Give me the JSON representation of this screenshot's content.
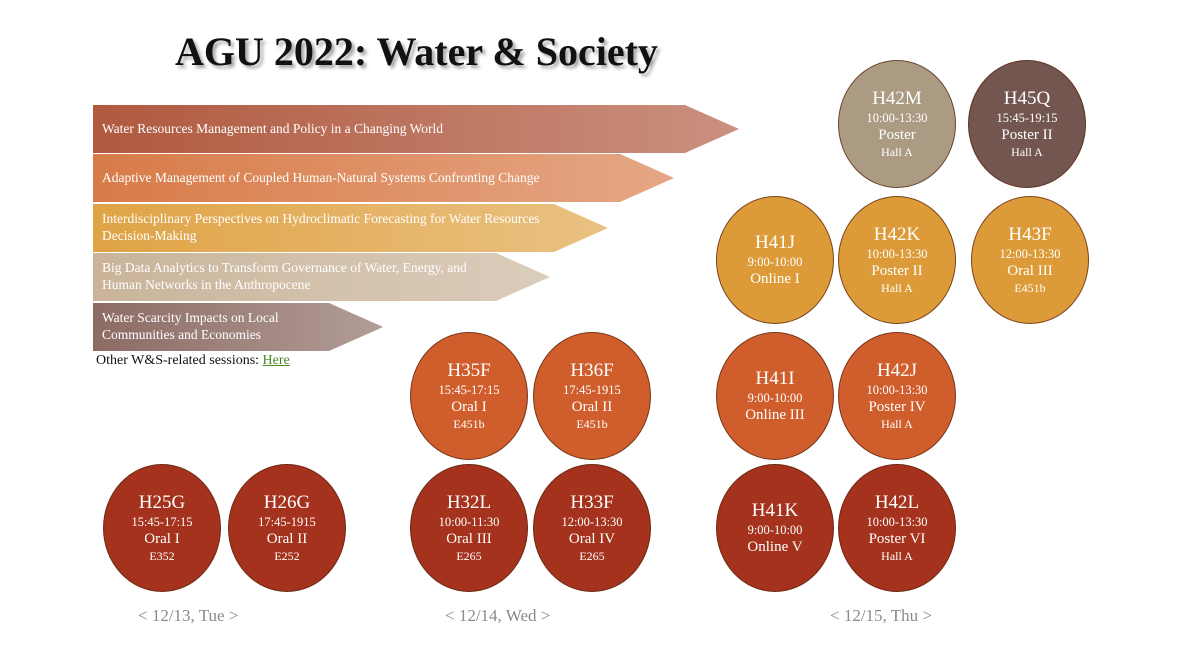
{
  "title": "AGU 2022: Water & Society",
  "themes": [
    {
      "label": "Water Resources Management and Policy in a Changing World",
      "color": "#b0593f"
    },
    {
      "label": "Adaptive Management of Coupled Human-Natural Systems Confronting Change",
      "color": "#d87b48"
    },
    {
      "label": "Interdisciplinary Perspectives on Hydroclimatic Forecasting for Water Resources Decision-Making",
      "color": "#dfa345"
    },
    {
      "label": "Big Data Analytics to Transform Governance of Water, Energy, and Human Networks in the Anthropocene",
      "color": "#c9b49a"
    },
    {
      "label": "Water Scarcity Impacts on Local Communities and Economies",
      "color": "#8c6b64"
    }
  ],
  "other_sessions": {
    "prefix": "Other W&S-related sessions: ",
    "link": "Here"
  },
  "sessions": [
    {
      "code": "H42M",
      "time": "10:00-13:30",
      "kind": "Poster",
      "room": "Hall A",
      "color": "#ab9b83"
    },
    {
      "code": "H45Q",
      "time": "15:45-19:15",
      "kind": "Poster II",
      "room": "Hall A",
      "color": "#735650"
    },
    {
      "code": "H41J",
      "time": "9:00-10:00",
      "kind": "Online I",
      "room": "",
      "color": "#dc9b38"
    },
    {
      "code": "H42K",
      "time": "10:00-13:30",
      "kind": "Poster II",
      "room": "Hall A",
      "color": "#dc9b38"
    },
    {
      "code": "H43F",
      "time": "12:00-13:30",
      "kind": "Oral III",
      "room": "E451b",
      "color": "#dc9b38"
    },
    {
      "code": "H35F",
      "time": "15:45-17:15",
      "kind": "Oral I",
      "room": "E451b",
      "color": "#cf5e2c"
    },
    {
      "code": "H36F",
      "time": "17:45-1915",
      "kind": "Oral II",
      "room": "E451b",
      "color": "#cf5e2c"
    },
    {
      "code": "H41I",
      "time": "9:00-10:00",
      "kind": "Online III",
      "room": "",
      "color": "#cf5e2c"
    },
    {
      "code": "H42J",
      "time": "10:00-13:30",
      "kind": "Poster IV",
      "room": "Hall A",
      "color": "#cf5e2c"
    },
    {
      "code": "H25G",
      "time": "15:45-17:15",
      "kind": "Oral I",
      "room": "E352",
      "color": "#a4321c"
    },
    {
      "code": "H26G",
      "time": "17:45-1915",
      "kind": "Oral II",
      "room": "E252",
      "color": "#a4321c"
    },
    {
      "code": "H32L",
      "time": "10:00-11:30",
      "kind": "Oral III",
      "room": "E265",
      "color": "#a4321c"
    },
    {
      "code": "H33F",
      "time": "12:00-13:30",
      "kind": "Oral IV",
      "room": "E265",
      "color": "#a4321c"
    },
    {
      "code": "H41K",
      "time": "9:00-10:00",
      "kind": "Online V",
      "room": "",
      "color": "#a4321c"
    },
    {
      "code": "H42L",
      "time": "10:00-13:30",
      "kind": "Poster VI",
      "room": "Hall A",
      "color": "#a4321c"
    }
  ],
  "days": [
    "< 12/13, Tue >",
    "< 12/14, Wed >",
    "< 12/15, Thu >"
  ]
}
